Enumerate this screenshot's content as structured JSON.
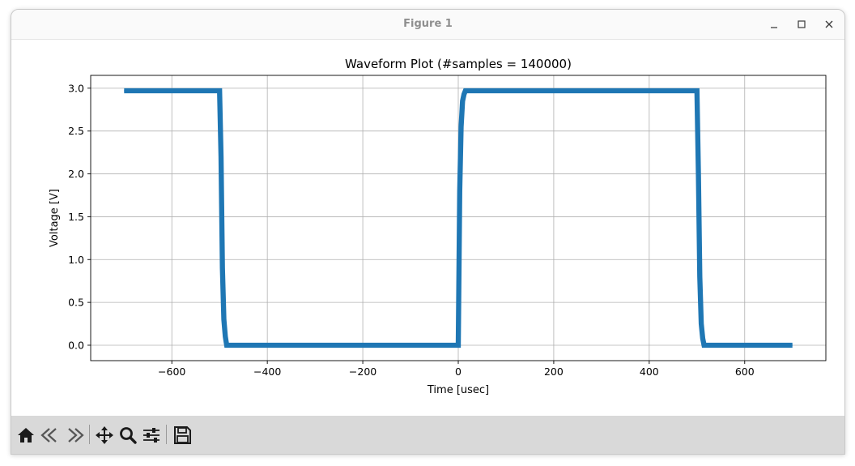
{
  "window": {
    "title": "Figure 1"
  },
  "toolbar": {
    "buttons": [
      "home-icon",
      "back-icon",
      "forward-icon",
      "pan-icon",
      "zoom-icon",
      "configure-subplots-icon",
      "save-icon"
    ]
  },
  "colors": {
    "series": "#1f77b4",
    "grid": "#b0b0b0",
    "toolbar_bg": "#d9d9d9"
  },
  "chart_data": {
    "type": "line",
    "title": "Waveform Plot (#samples = 140000)",
    "xlabel": "Time [usec]",
    "ylabel": "Voltage [V]",
    "xlim": [
      -770,
      770
    ],
    "ylim": [
      -0.18,
      3.15
    ],
    "xticks": [
      -600,
      -400,
      -200,
      0,
      200,
      400,
      600
    ],
    "xtick_labels": [
      "−600",
      "−400",
      "−200",
      "0",
      "200",
      "400",
      "600"
    ],
    "yticks": [
      0.0,
      0.5,
      1.0,
      1.5,
      2.0,
      2.5,
      3.0
    ],
    "ytick_labels": [
      "0.0",
      "0.5",
      "1.0",
      "1.5",
      "2.0",
      "2.5",
      "3.0"
    ],
    "grid": true,
    "series": [
      {
        "x": [
          -700,
          -500,
          -497,
          -494,
          -491,
          -488,
          -485,
          0,
          3,
          6,
          9,
          12,
          15,
          500,
          503,
          506,
          509,
          512,
          515,
          700
        ],
        "y": [
          2.97,
          2.97,
          2.2,
          0.9,
          0.3,
          0.1,
          0.0,
          0.0,
          1.8,
          2.55,
          2.85,
          2.93,
          2.97,
          2.97,
          2.0,
          0.8,
          0.25,
          0.08,
          0.0,
          0.0
        ],
        "noise_band": 0.06
      }
    ]
  }
}
